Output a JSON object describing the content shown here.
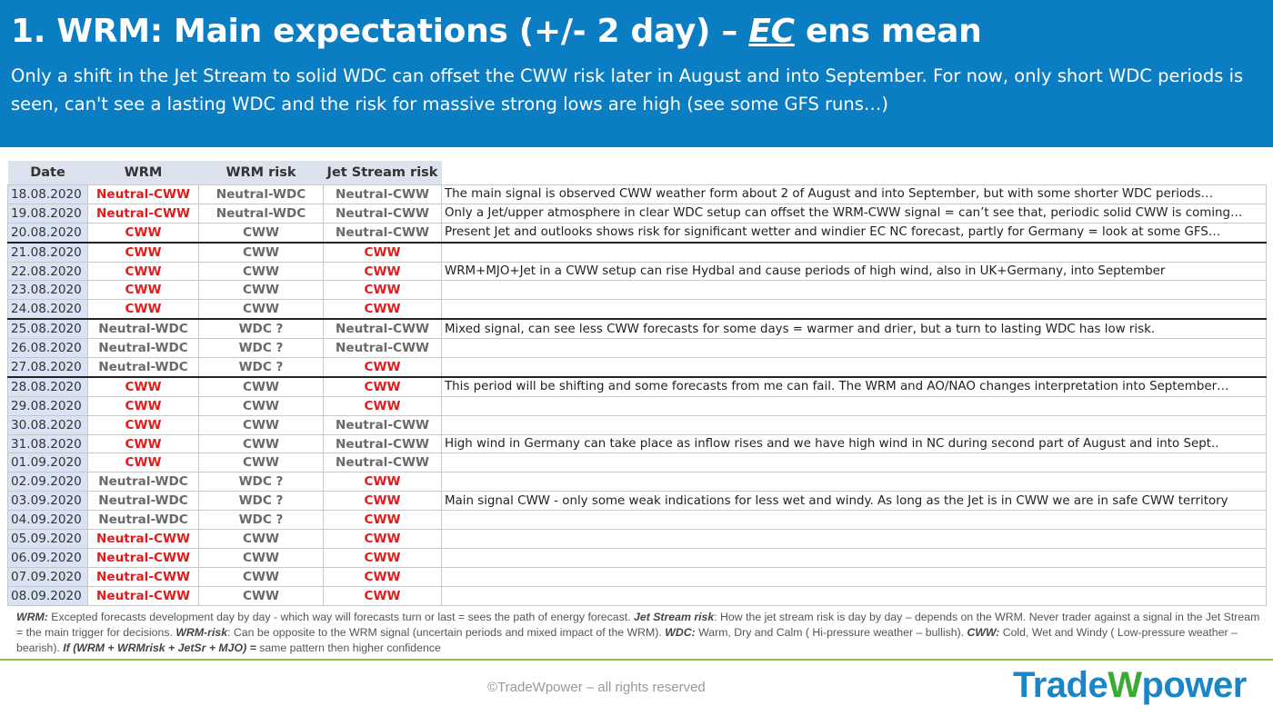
{
  "header": {
    "title": [
      "1. WRM: Main expectations (+/- 2 day) – ",
      "EC",
      " ens mean"
    ],
    "subtitle": "Only a shift in the Jet Stream to solid WDC can offset the CWW risk later in August and into September. For now, only short WDC periods is seen, can't see a lasting WDC and the risk for massive strong lows are high (see some GFS runs…)"
  },
  "table": {
    "columns": [
      "Date",
      "WRM",
      "WRM risk",
      "Jet Stream risk"
    ],
    "rows": [
      {
        "cells": [
          "18.08.2020",
          "Neutral-CWW",
          "Neutral-WDC",
          "Neutral-CWW",
          "The main signal is observed CWW weather form about 2 of August and into September, but with some shorter WDC periods…"
        ],
        "red": [
          1
        ]
      },
      {
        "cells": [
          "19.08.2020",
          "Neutral-CWW",
          "Neutral-WDC",
          "Neutral-CWW",
          "Only a Jet/upper atmosphere in clear WDC setup can offset the WRM-CWW signal = can’t see that, periodic solid CWW is coming…"
        ],
        "red": [
          1
        ]
      },
      {
        "cells": [
          "20.08.2020",
          "CWW",
          "CWW",
          "Neutral-CWW",
          "Present Jet and outlooks shows risk for significant wetter and windier EC NC forecast, partly for Germany = look at some GFS…"
        ],
        "red": [
          1
        ]
      },
      {
        "cells": [
          "21.08.2020",
          "CWW",
          "CWW",
          "CWW"
        ],
        "red": [
          1,
          3
        ]
      },
      {
        "cells": [
          "22.08.2020",
          "CWW",
          "CWW",
          "CWW",
          "WRM+MJO+Jet in a CWW setup can rise Hydbal and cause periods of high wind, also in UK+Germany, into September"
        ],
        "red": [
          1,
          3
        ]
      },
      {
        "cells": [
          "23.08.2020",
          "CWW",
          "CWW",
          "CWW"
        ],
        "red": [
          1,
          3
        ]
      },
      {
        "cells": [
          "24.08.2020",
          "CWW",
          "CWW",
          "CWW"
        ],
        "red": [
          1,
          3
        ]
      },
      {
        "cells": [
          "25.08.2020",
          "Neutral-WDC",
          "WDC ?",
          "Neutral-CWW",
          "Mixed signal, can see less CWW forecasts for some days = warmer and drier, but a turn to lasting WDC has low risk."
        ],
        "red": []
      },
      {
        "cells": [
          "26.08.2020",
          "Neutral-WDC",
          "WDC ?",
          "Neutral-CWW"
        ],
        "red": []
      },
      {
        "cells": [
          "27.08.2020",
          "Neutral-WDC",
          "WDC ?",
          "CWW"
        ],
        "red": [
          3
        ]
      },
      {
        "cells": [
          "28.08.2020",
          "CWW",
          "CWW",
          "CWW",
          "This period will be shifting and some forecasts from me can fail. The WRM and AO/NAO changes interpretation into September…"
        ],
        "red": [
          1,
          3
        ]
      },
      {
        "cells": [
          "29.08.2020",
          "CWW",
          "CWW",
          "CWW"
        ],
        "red": [
          1,
          3
        ]
      },
      {
        "cells": [
          "30.08.2020",
          "CWW",
          "CWW",
          "Neutral-CWW"
        ],
        "red": [
          1
        ]
      },
      {
        "cells": [
          "31.08.2020",
          "CWW",
          "CWW",
          "Neutral-CWW",
          "High wind in Germany can take place as inflow rises and we have high wind in NC during second part of August and into Sept.."
        ],
        "red": [
          1
        ]
      },
      {
        "cells": [
          "01.09.2020",
          "CWW",
          "CWW",
          "Neutral-CWW"
        ],
        "red": [
          1
        ]
      },
      {
        "cells": [
          "02.09.2020",
          "Neutral-WDC",
          "WDC ?",
          "CWW"
        ],
        "red": [
          3
        ]
      },
      {
        "cells": [
          "03.09.2020",
          "Neutral-WDC",
          "WDC ?",
          "CWW",
          "Main signal CWW - only some weak indications for less wet and windy. As long as the Jet is in CWW we are in safe CWW territory"
        ],
        "red": [
          3
        ]
      },
      {
        "cells": [
          "04.09.2020",
          "Neutral-WDC",
          "WDC ?",
          "CWW"
        ],
        "red": [
          3
        ]
      },
      {
        "cells": [
          "05.09.2020",
          "Neutral-CWW",
          "CWW",
          "CWW"
        ],
        "red": [
          1,
          3
        ]
      },
      {
        "cells": [
          "06.09.2020",
          "Neutral-CWW",
          "CWW",
          "CWW"
        ],
        "red": [
          1,
          3
        ]
      },
      {
        "cells": [
          "07.09.2020",
          "Neutral-CWW",
          "CWW",
          "CWW"
        ],
        "red": [
          1,
          3
        ]
      },
      {
        "cells": [
          "08.09.2020",
          "Neutral-CWW",
          "CWW",
          "CWW"
        ],
        "red": [
          1,
          3
        ]
      }
    ]
  },
  "footer": {
    "note": [
      "WRM:",
      " Excepted forecasts development day by day - which way will forecasts turn or last = sees the path of energy forecast.  ",
      "Jet Stream risk",
      ": How the jet stream risk is day by day – depends on the WRM. Never trader against a signal in the Jet Stream = the main trigger for decisions. ",
      "WRM-risk",
      ": Can be opposite to the WRM signal (uncertain periods and mixed impact of the WRM). ",
      "WDC:",
      " Warm, Dry and Calm ( Hi-pressure weather – bullish). ",
      "CWW:",
      " Cold, Wet and Windy ( Low-pressure weather – bearish). ",
      "If (WRM + WRMrisk + JetSr + MJO) =",
      " same pattern then higher confidence"
    ],
    "copyright": "©TradeWpower – all rights reserved",
    "logo": [
      "Trade",
      "W",
      "power"
    ]
  }
}
